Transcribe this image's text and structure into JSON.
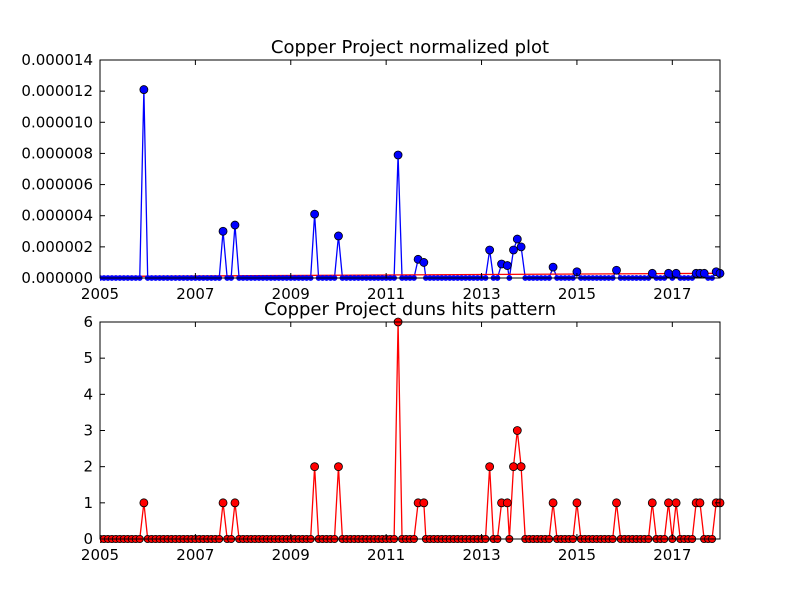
{
  "chart_data": [
    {
      "type": "line",
      "title": "Copper Project normalized plot",
      "xlabel": "",
      "ylabel": "",
      "xlim": [
        2005,
        2018
      ],
      "ylim": [
        0,
        1.4e-05
      ],
      "xticks": [
        "2005",
        "2007",
        "2009",
        "2011",
        "2013",
        "2015",
        "2017"
      ],
      "yticks": [
        "0.000000",
        "0.000002",
        "0.000004",
        "0.000006",
        "0.000008",
        "0.000010",
        "0.000012",
        "0.000014"
      ],
      "grid": false,
      "colors": {
        "series": "#0000ff",
        "trend": "#ff0000",
        "marker_edge": "#000000"
      },
      "series": [
        {
          "points": [
            [
              2005.92,
              1.21e-05
            ],
            [
              2007.58,
              3e-06
            ],
            [
              2007.83,
              3.4e-06
            ],
            [
              2009.5,
              4.1e-06
            ],
            [
              2010.0,
              2.7e-06
            ],
            [
              2011.25,
              7.9e-06
            ],
            [
              2011.67,
              1.2e-06
            ],
            [
              2011.79,
              1e-06
            ],
            [
              2013.17,
              1.8e-06
            ],
            [
              2013.42,
              9e-07
            ],
            [
              2013.54,
              8e-07
            ],
            [
              2013.67,
              1.8e-06
            ],
            [
              2013.75,
              2.5e-06
            ],
            [
              2013.83,
              2e-06
            ],
            [
              2014.5,
              7e-07
            ],
            [
              2015.0,
              4e-07
            ],
            [
              2015.83,
              5e-07
            ],
            [
              2016.58,
              3e-07
            ],
            [
              2016.92,
              3e-07
            ],
            [
              2017.08,
              3e-07
            ],
            [
              2017.5,
              3e-07
            ],
            [
              2017.58,
              3e-07
            ],
            [
              2017.67,
              3e-07
            ],
            [
              2017.92,
              4e-07
            ],
            [
              2018.0,
              3e-07
            ]
          ]
        }
      ],
      "trend": {
        "x": [
          2005,
          2018
        ],
        "y": [
          1e-07,
          3e-07
        ]
      }
    },
    {
      "type": "line",
      "title": "Copper Project duns hits pattern",
      "xlabel": "",
      "ylabel": "",
      "xlim": [
        2005,
        2018
      ],
      "ylim": [
        0,
        6
      ],
      "xticks": [
        "2005",
        "2007",
        "2009",
        "2011",
        "2013",
        "2015",
        "2017"
      ],
      "yticks": [
        "0",
        "1",
        "2",
        "3",
        "4",
        "5",
        "6"
      ],
      "grid": false,
      "colors": {
        "series": "#ff0000",
        "marker_edge": "#000000"
      },
      "series": [
        {
          "points": [
            [
              2005.92,
              1
            ],
            [
              2007.58,
              1
            ],
            [
              2007.83,
              1
            ],
            [
              2009.5,
              2
            ],
            [
              2010.0,
              2
            ],
            [
              2011.25,
              6
            ],
            [
              2011.67,
              1
            ],
            [
              2011.79,
              1
            ],
            [
              2013.17,
              2
            ],
            [
              2013.42,
              1
            ],
            [
              2013.54,
              1
            ],
            [
              2013.67,
              2
            ],
            [
              2013.75,
              3
            ],
            [
              2013.83,
              2
            ],
            [
              2014.5,
              1
            ],
            [
              2015.0,
              1
            ],
            [
              2015.83,
              1
            ],
            [
              2016.58,
              1
            ],
            [
              2016.92,
              1
            ],
            [
              2017.08,
              1
            ],
            [
              2017.5,
              1
            ],
            [
              2017.58,
              1
            ],
            [
              2017.92,
              1
            ],
            [
              2018.0,
              1
            ]
          ]
        }
      ]
    }
  ]
}
